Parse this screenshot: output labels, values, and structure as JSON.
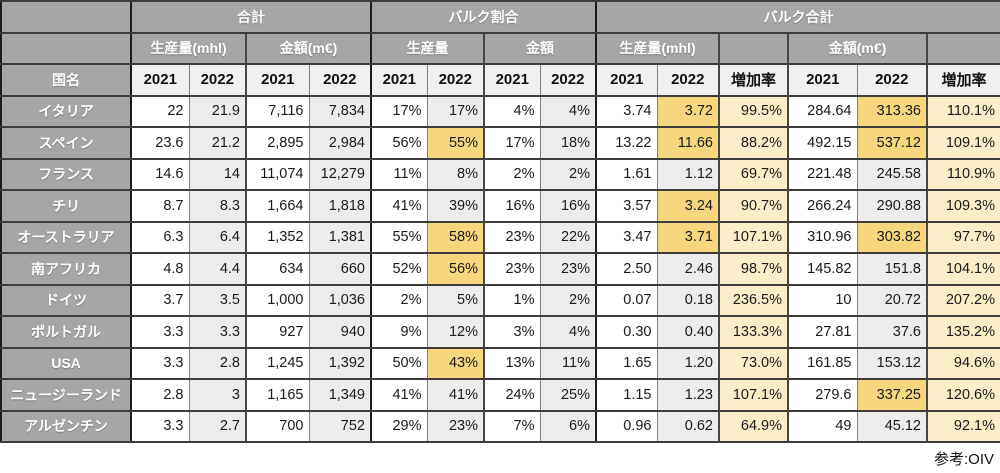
{
  "header": {
    "corner": "",
    "country_label": "国名",
    "groups": [
      {
        "label": "合計"
      },
      {
        "label": "バルク割合"
      },
      {
        "label": "バルク合計"
      }
    ],
    "subgroups": [
      "生産量(mhl)",
      "金額(m€)",
      "生産量",
      "金額",
      "生産量(mhl)",
      "",
      "金額(m€)",
      ""
    ],
    "years": [
      "2021",
      "2022",
      "2021",
      "2022",
      "2021",
      "2022",
      "2021",
      "2022",
      "2021",
      "2022",
      "増加率",
      "2021",
      "2022",
      "増加率"
    ]
  },
  "rows": [
    {
      "country": "イタリア",
      "values": [
        "22",
        "21.9",
        "7,116",
        "7,834",
        "17%",
        "17%",
        "4%",
        "4%",
        "3.74",
        "3.72",
        "99.5%",
        "284.64",
        "313.36",
        "110.1%"
      ],
      "hl": [
        9,
        12
      ]
    },
    {
      "country": "スペイン",
      "values": [
        "23.6",
        "21.2",
        "2,895",
        "2,984",
        "56%",
        "55%",
        "17%",
        "18%",
        "13.22",
        "11.66",
        "88.2%",
        "492.15",
        "537.12",
        "109.1%"
      ],
      "hl": [
        5,
        9,
        12
      ]
    },
    {
      "country": "フランス",
      "values": [
        "14.6",
        "14",
        "11,074",
        "12,279",
        "11%",
        "8%",
        "2%",
        "2%",
        "1.61",
        "1.12",
        "69.7%",
        "221.48",
        "245.58",
        "110.9%"
      ],
      "hl": []
    },
    {
      "country": "チリ",
      "values": [
        "8.7",
        "8.3",
        "1,664",
        "1,818",
        "41%",
        "39%",
        "16%",
        "16%",
        "3.57",
        "3.24",
        "90.7%",
        "266.24",
        "290.88",
        "109.3%"
      ],
      "hl": [
        9
      ]
    },
    {
      "country": "オーストラリア",
      "values": [
        "6.3",
        "6.4",
        "1,352",
        "1,381",
        "55%",
        "58%",
        "23%",
        "22%",
        "3.47",
        "3.71",
        "107.1%",
        "310.96",
        "303.82",
        "97.7%"
      ],
      "hl": [
        5,
        9,
        12
      ]
    },
    {
      "country": "南アフリカ",
      "values": [
        "4.8",
        "4.4",
        "634",
        "660",
        "52%",
        "56%",
        "23%",
        "23%",
        "2.50",
        "2.46",
        "98.7%",
        "145.82",
        "151.8",
        "104.1%"
      ],
      "hl": [
        5
      ]
    },
    {
      "country": "ドイツ",
      "values": [
        "3.7",
        "3.5",
        "1,000",
        "1,036",
        "2%",
        "5%",
        "1%",
        "2%",
        "0.07",
        "0.18",
        "236.5%",
        "10",
        "20.72",
        "207.2%"
      ],
      "hl": []
    },
    {
      "country": "ポルトガル",
      "values": [
        "3.3",
        "3.3",
        "927",
        "940",
        "9%",
        "12%",
        "3%",
        "4%",
        "0.30",
        "0.40",
        "133.3%",
        "27.81",
        "37.6",
        "135.2%"
      ],
      "hl": []
    },
    {
      "country": "USA",
      "values": [
        "3.3",
        "2.8",
        "1,245",
        "1,392",
        "50%",
        "43%",
        "13%",
        "11%",
        "1.65",
        "1.20",
        "73.0%",
        "161.85",
        "153.12",
        "94.6%"
      ],
      "hl": [
        5
      ]
    },
    {
      "country": "ニュージーランド",
      "values": [
        "2.8",
        "3",
        "1,165",
        "1,349",
        "41%",
        "41%",
        "24%",
        "25%",
        "1.15",
        "1.23",
        "107.1%",
        "279.6",
        "337.25",
        "120.6%"
      ],
      "hl": [
        12
      ]
    },
    {
      "country": "アルゼンチン",
      "values": [
        "3.3",
        "2.7",
        "700",
        "752",
        "29%",
        "23%",
        "7%",
        "6%",
        "0.96",
        "0.62",
        "64.9%",
        "49",
        "45.12",
        "92.1%"
      ],
      "hl": []
    }
  ],
  "footer": {
    "source": "参考:OIV"
  },
  "colors": {
    "header_gray": "#a6a6a6",
    "alt_column_gray": "#edecea",
    "highlight_yellow": "#f6d77e",
    "rate_column_yellow": "#faeec8"
  },
  "chart_data": {
    "type": "table",
    "title": "",
    "column_groups": [
      "合計",
      "バルク割合",
      "バルク合計"
    ],
    "columns": [
      "国名",
      "合計 生産量(mhl) 2021",
      "合計 生産量(mhl) 2022",
      "合計 金額(m€) 2021",
      "合計 金額(m€) 2022",
      "バルク割合 生産量 2021",
      "バルク割合 生産量 2022",
      "バルク割合 金額 2021",
      "バルク割合 金額 2022",
      "バルク合計 生産量(mhl) 2021",
      "バルク合計 生産量(mhl) 2022",
      "バルク合計 生産量 増加率",
      "バルク合計 金額(m€) 2021",
      "バルク合計 金額(m€) 2022",
      "バルク合計 金額 増加率"
    ],
    "rows": [
      [
        "イタリア",
        22,
        21.9,
        7116,
        7834,
        "17%",
        "17%",
        "4%",
        "4%",
        3.74,
        3.72,
        "99.5%",
        284.64,
        313.36,
        "110.1%"
      ],
      [
        "スペイン",
        23.6,
        21.2,
        2895,
        2984,
        "56%",
        "55%",
        "17%",
        "18%",
        13.22,
        11.66,
        "88.2%",
        492.15,
        537.12,
        "109.1%"
      ],
      [
        "フランス",
        14.6,
        14,
        11074,
        12279,
        "11%",
        "8%",
        "2%",
        "2%",
        1.61,
        1.12,
        "69.7%",
        221.48,
        245.58,
        "110.9%"
      ],
      [
        "チリ",
        8.7,
        8.3,
        1664,
        1818,
        "41%",
        "39%",
        "16%",
        "16%",
        3.57,
        3.24,
        "90.7%",
        266.24,
        290.88,
        "109.3%"
      ],
      [
        "オーストラリア",
        6.3,
        6.4,
        1352,
        1381,
        "55%",
        "58%",
        "23%",
        "22%",
        3.47,
        3.71,
        "107.1%",
        310.96,
        303.82,
        "97.7%"
      ],
      [
        "南アフリカ",
        4.8,
        4.4,
        634,
        660,
        "52%",
        "56%",
        "23%",
        "23%",
        2.5,
        2.46,
        "98.7%",
        145.82,
        151.8,
        "104.1%"
      ],
      [
        "ドイツ",
        3.7,
        3.5,
        1000,
        1036,
        "2%",
        "5%",
        "1%",
        "2%",
        0.07,
        0.18,
        "236.5%",
        10,
        20.72,
        "207.2%"
      ],
      [
        "ポルトガル",
        3.3,
        3.3,
        927,
        940,
        "9%",
        "12%",
        "3%",
        "4%",
        0.3,
        0.4,
        "133.3%",
        27.81,
        37.6,
        "135.2%"
      ],
      [
        "USA",
        3.3,
        2.8,
        1245,
        1392,
        "50%",
        "43%",
        "13%",
        "11%",
        1.65,
        1.2,
        "73.0%",
        161.85,
        153.12,
        "94.6%"
      ],
      [
        "ニュージーランド",
        2.8,
        3,
        1165,
        1349,
        "41%",
        "41%",
        "24%",
        "25%",
        1.15,
        1.23,
        "107.1%",
        279.6,
        337.25,
        "120.6%"
      ],
      [
        "アルゼンチン",
        3.3,
        2.7,
        700,
        752,
        "29%",
        "23%",
        "7%",
        "6%",
        0.96,
        0.62,
        "64.9%",
        49,
        45.12,
        "92.1%"
      ]
    ],
    "footnote": "参考:OIV"
  }
}
